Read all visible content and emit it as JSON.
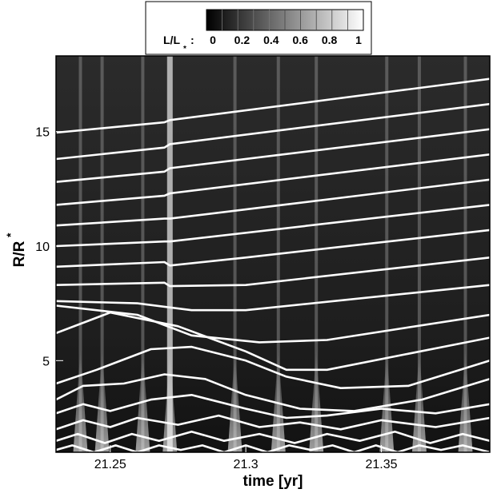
{
  "chart_data": {
    "type": "heatmap",
    "xlabel": "time [yr]",
    "ylabel": "R/R",
    "ylabel_subscript": "*",
    "xlim": [
      21.23,
      21.39
    ],
    "ylim": [
      1,
      18.3
    ],
    "xticks": [
      21.25,
      21.3,
      21.35
    ],
    "xtick_labels": [
      "21.25",
      "21.3",
      "21.35"
    ],
    "yticks": [
      5,
      10,
      15
    ],
    "ytick_labels": [
      "5",
      "10",
      "15"
    ],
    "colorbar": {
      "label": "L/L",
      "label_subscript": "*",
      "separator": ":",
      "ticks": [
        "0",
        "0.2",
        "0.4",
        "0.6",
        "0.8",
        "1"
      ],
      "range": [
        0,
        1
      ],
      "placement": "top-center"
    },
    "bright_time_bands": [
      21.239,
      21.247,
      21.262,
      21.272,
      21.296,
      21.312,
      21.326,
      21.352,
      21.364,
      21.381
    ],
    "trajectories": [
      {
        "x": [
          21.23,
          21.27,
          21.272,
          21.39
        ],
        "y": [
          14.95,
          15.4,
          15.5,
          17.3
        ]
      },
      {
        "x": [
          21.23,
          21.27,
          21.272,
          21.39
        ],
        "y": [
          13.8,
          14.3,
          14.45,
          16.2
        ]
      },
      {
        "x": [
          21.23,
          21.27,
          21.272,
          21.39
        ],
        "y": [
          12.8,
          13.25,
          13.4,
          15.1
        ]
      },
      {
        "x": [
          21.23,
          21.27,
          21.272,
          21.39
        ],
        "y": [
          11.8,
          12.2,
          12.3,
          14.0
        ]
      },
      {
        "x": [
          21.23,
          21.27,
          21.272,
          21.39
        ],
        "y": [
          10.9,
          11.2,
          11.2,
          12.9
        ]
      },
      {
        "x": [
          21.23,
          21.27,
          21.272,
          21.39
        ],
        "y": [
          10.0,
          10.2,
          10.2,
          11.8
        ]
      },
      {
        "x": [
          21.23,
          21.27,
          21.272,
          21.3,
          21.39
        ],
        "y": [
          9.1,
          9.3,
          9.15,
          9.5,
          10.7
        ]
      },
      {
        "x": [
          21.23,
          21.27,
          21.272,
          21.3,
          21.39
        ],
        "y": [
          8.3,
          8.4,
          8.25,
          8.3,
          9.5
        ]
      },
      {
        "x": [
          21.23,
          21.26,
          21.28,
          21.3,
          21.39
        ],
        "y": [
          7.6,
          7.5,
          7.2,
          7.2,
          8.3
        ]
      },
      {
        "x": [
          21.23,
          21.26,
          21.28,
          21.305,
          21.33,
          21.39
        ],
        "y": [
          7.4,
          7.0,
          6.1,
          5.8,
          5.9,
          7.0
        ]
      },
      {
        "x": [
          21.23,
          21.25,
          21.275,
          21.3,
          21.315,
          21.33,
          21.36,
          21.39
        ],
        "y": [
          6.2,
          7.1,
          6.5,
          5.4,
          4.6,
          4.6,
          5.3,
          6.0
        ]
      },
      {
        "x": [
          21.23,
          21.245,
          21.265,
          21.28,
          21.3,
          21.315,
          21.335,
          21.36,
          21.39
        ],
        "y": [
          4.0,
          4.6,
          5.5,
          5.6,
          5.0,
          4.3,
          3.8,
          3.9,
          5.0
        ]
      },
      {
        "x": [
          21.23,
          21.24,
          21.255,
          21.27,
          21.285,
          21.3,
          21.32,
          21.34,
          21.365,
          21.39
        ],
        "y": [
          3.3,
          3.9,
          4.0,
          4.4,
          4.2,
          3.5,
          2.9,
          2.8,
          3.3,
          4.2
        ]
      },
      {
        "x": [
          21.23,
          21.24,
          21.25,
          21.265,
          21.28,
          21.3,
          21.315,
          21.33,
          21.35,
          21.37,
          21.39
        ],
        "y": [
          2.7,
          3.1,
          2.8,
          3.3,
          3.5,
          2.9,
          2.5,
          2.6,
          2.9,
          2.7,
          3.1
        ]
      },
      {
        "x": [
          21.23,
          21.24,
          21.25,
          21.26,
          21.275,
          21.29,
          21.305,
          21.32,
          21.335,
          21.35,
          21.37,
          21.39
        ],
        "y": [
          2.0,
          2.4,
          2.1,
          2.5,
          2.2,
          2.6,
          2.1,
          2.3,
          2.0,
          2.4,
          2.1,
          2.5
        ]
      },
      {
        "x": [
          21.23,
          21.238,
          21.248,
          21.258,
          21.268,
          21.28,
          21.292,
          21.305,
          21.318,
          21.33,
          21.342,
          21.355,
          21.368,
          21.38,
          21.39
        ],
        "y": [
          1.5,
          1.8,
          1.4,
          1.8,
          1.5,
          1.9,
          1.5,
          1.8,
          1.4,
          1.8,
          1.5,
          1.9,
          1.4,
          1.8,
          1.5
        ]
      },
      {
        "x": [
          21.23,
          21.236,
          21.244,
          21.252,
          21.26,
          21.268,
          21.276,
          21.284,
          21.292,
          21.3,
          21.308,
          21.316,
          21.324,
          21.332,
          21.34,
          21.348,
          21.356,
          21.364,
          21.372,
          21.38,
          21.39
        ],
        "y": [
          1.1,
          1.3,
          1.0,
          1.3,
          1.0,
          1.3,
          1.1,
          1.3,
          1.0,
          1.3,
          1.0,
          1.3,
          1.1,
          1.3,
          1.0,
          1.3,
          1.0,
          1.3,
          1.1,
          1.3,
          1.0
        ]
      }
    ]
  }
}
